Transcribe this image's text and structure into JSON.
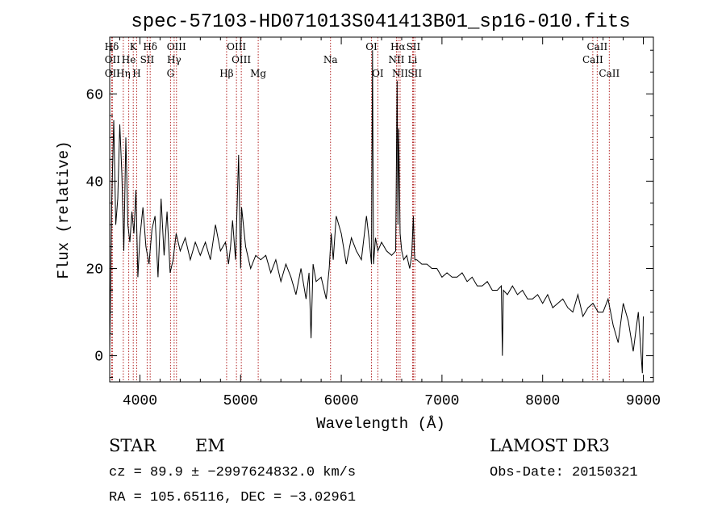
{
  "chart_data": {
    "type": "line",
    "title": "spec-57103-HD071013S041413B01_sp16-010.fits",
    "xlabel": "Wavelength (Å)",
    "ylabel": "Flux (relative)",
    "xlim": [
      3700,
      9100
    ],
    "ylim": [
      -6,
      73
    ],
    "xticks": [
      4000,
      5000,
      6000,
      7000,
      8000,
      9000
    ],
    "yticks": [
      0,
      20,
      40,
      60
    ],
    "grid": false,
    "series": [
      {
        "values_note_free": true,
        "x": [
          3700,
          3720,
          3740,
          3760,
          3780,
          3800,
          3820,
          3840,
          3860,
          3880,
          3900,
          3920,
          3940,
          3960,
          3980,
          4000,
          4030,
          4060,
          4090,
          4120,
          4150,
          4180,
          4210,
          4240,
          4270,
          4300,
          4330,
          4360,
          4400,
          4450,
          4500,
          4550,
          4600,
          4650,
          4700,
          4750,
          4800,
          4850,
          4880,
          4900,
          4920,
          4950,
          4980,
          5000,
          5010,
          5050,
          5100,
          5150,
          5200,
          5250,
          5300,
          5350,
          5400,
          5450,
          5500,
          5550,
          5600,
          5650,
          5680,
          5700,
          5720,
          5750,
          5800,
          5850,
          5880,
          5900,
          5920,
          5950,
          6000,
          6050,
          6100,
          6150,
          6200,
          6250,
          6280,
          6300,
          6310,
          6320,
          6340,
          6363,
          6400,
          6450,
          6500,
          6540,
          6555,
          6563,
          6570,
          6584,
          6600,
          6620,
          6650,
          6680,
          6700,
          6716,
          6725,
          6731,
          6750,
          6800,
          6850,
          6900,
          6950,
          7000,
          7050,
          7100,
          7150,
          7200,
          7250,
          7300,
          7350,
          7400,
          7450,
          7500,
          7550,
          7590,
          7600,
          7610,
          7650,
          7700,
          7750,
          7800,
          7850,
          7900,
          7950,
          8000,
          8050,
          8100,
          8150,
          8200,
          8250,
          8300,
          8350,
          8400,
          8450,
          8500,
          8550,
          8600,
          8650,
          8700,
          8750,
          8800,
          8850,
          8900,
          8950,
          8990,
          9000
        ],
        "y": [
          1,
          35,
          54,
          30,
          36,
          53,
          42,
          24,
          50,
          30,
          26,
          33,
          28,
          38,
          18,
          27,
          34,
          25,
          21,
          29,
          32,
          18,
          36,
          23,
          33,
          19,
          22,
          28,
          24,
          27,
          22,
          26,
          23,
          26,
          22,
          30,
          24,
          26,
          21,
          25,
          31,
          22,
          46,
          20,
          34,
          25,
          20,
          23,
          22,
          23,
          19,
          22,
          17,
          21,
          18,
          14,
          20,
          13,
          19,
          4,
          21,
          17,
          18,
          13,
          20,
          28,
          22,
          32,
          28,
          21,
          27,
          24,
          22,
          32,
          26,
          21,
          70,
          21,
          27,
          24,
          26,
          24,
          23,
          24,
          63,
          30,
          52,
          28,
          24,
          22,
          23,
          20,
          23,
          32,
          24,
          22,
          22,
          21,
          21,
          20,
          20,
          18,
          19,
          18,
          18,
          19,
          17,
          18,
          16,
          16,
          17,
          15,
          15,
          16,
          0,
          15,
          14,
          16,
          14,
          15,
          13,
          13,
          14,
          12,
          14,
          11,
          12,
          13,
          11,
          10,
          14,
          9,
          11,
          12,
          10,
          10,
          13,
          7,
          3,
          12,
          8,
          1,
          10,
          -4,
          9
        ]
      }
    ],
    "lines": [
      {
        "name": "Hδ",
        "x": 3720,
        "row": 1
      },
      {
        "name": "OII",
        "x": 3727,
        "row": 2
      },
      {
        "name": "OII",
        "x": 3727,
        "row": 3
      },
      {
        "name": "K",
        "x": 3934,
        "row": 1
      },
      {
        "name": "He",
        "x": 3889,
        "row": 2
      },
      {
        "name": "Hη",
        "x": 3835,
        "row": 3
      },
      {
        "name": "Hδ",
        "x": 4102,
        "row": 1
      },
      {
        "name": "SII",
        "x": 4072,
        "row": 2
      },
      {
        "name": "H",
        "x": 3968,
        "row": 3
      },
      {
        "name": "OIII",
        "x": 4363,
        "row": 1
      },
      {
        "name": "Hγ",
        "x": 4340,
        "row": 2
      },
      {
        "name": "G",
        "x": 4304,
        "row": 3
      },
      {
        "name": "OIII",
        "x": 4959,
        "row": 1
      },
      {
        "name": "OIII",
        "x": 5007,
        "row": 2
      },
      {
        "name": "Hβ",
        "x": 4861,
        "row": 3
      },
      {
        "name": "Mg",
        "x": 5175,
        "row": 3
      },
      {
        "name": "Na",
        "x": 5893,
        "row": 2
      },
      {
        "name": "OI",
        "x": 6300,
        "row": 1
      },
      {
        "name": "OI",
        "x": 6363,
        "row": 3
      },
      {
        "name": "Hα",
        "x": 6563,
        "row": 1
      },
      {
        "name": "NII",
        "x": 6548,
        "row": 2
      },
      {
        "name": "NII",
        "x": 6584,
        "row": 3
      },
      {
        "name": "SII",
        "x": 6716,
        "row": 1
      },
      {
        "name": "Li",
        "x": 6708,
        "row": 2
      },
      {
        "name": "SII",
        "x": 6731,
        "row": 3
      },
      {
        "name": "CaII",
        "x": 8542,
        "row": 1
      },
      {
        "name": "CaII",
        "x": 8498,
        "row": 2
      },
      {
        "name": "CaII",
        "x": 8662,
        "row": 3
      }
    ]
  },
  "info": {
    "class": "STAR",
    "subclass": "EM",
    "survey": "LAMOST DR3",
    "cz": "cz = 89.9 ± −2997624832.0 km/s",
    "obs_date": "Obs-Date: 20150321",
    "radec": "RA = 105.65116, DEC =  −3.02961"
  },
  "colors": {
    "spectrum": "#000000",
    "line_marker": "#b22222",
    "axes": "#000000"
  }
}
